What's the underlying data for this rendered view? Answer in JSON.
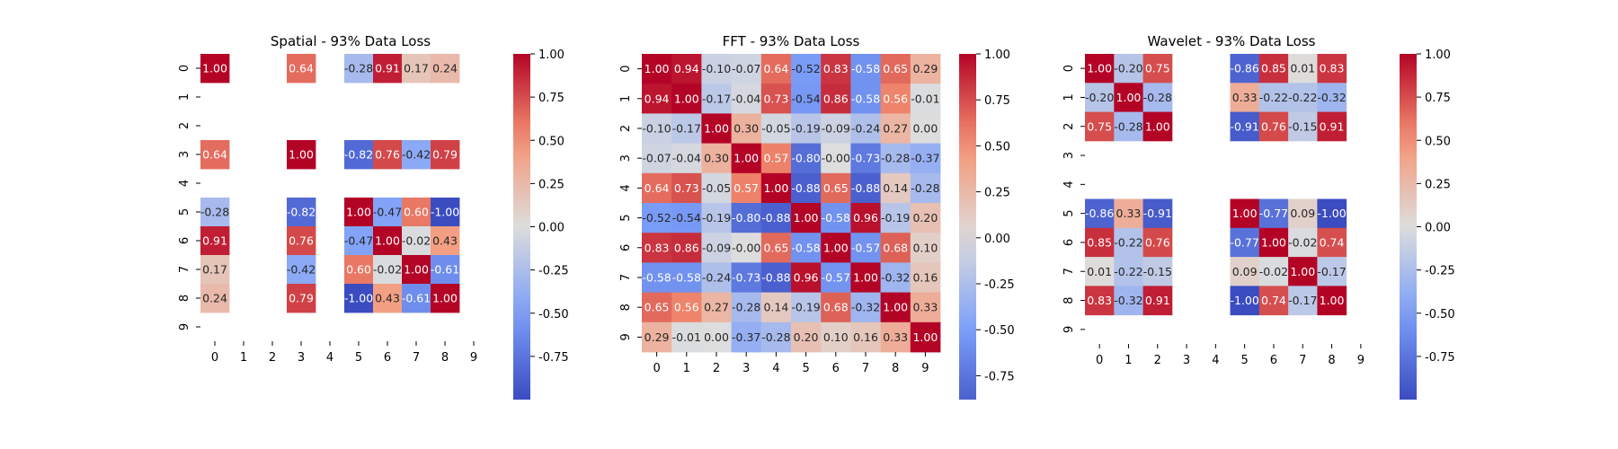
{
  "chart_data": [
    {
      "type": "heatmap",
      "title": "Spatial - 93% Data Loss",
      "xticks": [
        "0",
        "1",
        "2",
        "3",
        "4",
        "5",
        "6",
        "7",
        "8",
        "9"
      ],
      "yticks": [
        "0",
        "1",
        "2",
        "3",
        "4",
        "5",
        "6",
        "7",
        "8",
        "9"
      ],
      "colormap": "coolwarm",
      "vmin": -1.0,
      "vmax": 1.0,
      "colorbar_ticks": [
        1.0,
        0.75,
        0.5,
        0.25,
        0.0,
        -0.25,
        -0.5,
        -0.75
      ],
      "values": [
        [
          1.0,
          null,
          null,
          0.64,
          null,
          -0.28,
          0.91,
          0.17,
          0.24,
          null
        ],
        [
          null,
          null,
          null,
          null,
          null,
          null,
          null,
          null,
          null,
          null
        ],
        [
          null,
          null,
          null,
          null,
          null,
          null,
          null,
          null,
          null,
          null
        ],
        [
          0.64,
          null,
          null,
          1.0,
          null,
          -0.82,
          0.76,
          -0.42,
          0.79,
          null
        ],
        [
          null,
          null,
          null,
          null,
          null,
          null,
          null,
          null,
          null,
          null
        ],
        [
          -0.28,
          null,
          null,
          -0.82,
          null,
          1.0,
          -0.47,
          0.6,
          -1.0,
          null
        ],
        [
          0.91,
          null,
          null,
          0.76,
          null,
          -0.47,
          1.0,
          -0.02,
          0.43,
          null
        ],
        [
          0.17,
          null,
          null,
          -0.42,
          null,
          0.6,
          -0.02,
          1.0,
          -0.61,
          null
        ],
        [
          0.24,
          null,
          null,
          0.79,
          null,
          -1.0,
          0.43,
          -0.61,
          1.0,
          null
        ],
        [
          null,
          null,
          null,
          null,
          null,
          null,
          null,
          null,
          null,
          null
        ]
      ]
    },
    {
      "type": "heatmap",
      "title": "FFT - 93% Data Loss",
      "xticks": [
        "0",
        "1",
        "2",
        "3",
        "4",
        "5",
        "6",
        "7",
        "8",
        "9"
      ],
      "yticks": [
        "0",
        "1",
        "2",
        "3",
        "4",
        "5",
        "6",
        "7",
        "8",
        "9"
      ],
      "colormap": "coolwarm",
      "vmin": -0.88,
      "vmax": 1.0,
      "colorbar_ticks": [
        1.0,
        0.75,
        0.5,
        0.25,
        0.0,
        -0.25,
        -0.5,
        -0.75
      ],
      "values": [
        [
          1.0,
          0.94,
          -0.1,
          -0.07,
          0.64,
          -0.52,
          0.83,
          -0.58,
          0.65,
          0.29
        ],
        [
          0.94,
          1.0,
          -0.17,
          -0.04,
          0.73,
          -0.54,
          0.86,
          -0.58,
          0.56,
          -0.01
        ],
        [
          -0.1,
          -0.17,
          1.0,
          0.3,
          -0.05,
          -0.19,
          -0.09,
          -0.24,
          0.27,
          0.0
        ],
        [
          -0.07,
          -0.04,
          0.3,
          1.0,
          0.57,
          -0.8,
          -0.0,
          -0.73,
          -0.28,
          -0.37
        ],
        [
          0.64,
          0.73,
          -0.05,
          0.57,
          1.0,
          -0.88,
          0.65,
          -0.88,
          0.14,
          -0.28
        ],
        [
          -0.52,
          -0.54,
          -0.19,
          -0.8,
          -0.88,
          1.0,
          -0.58,
          0.96,
          -0.19,
          0.2
        ],
        [
          0.83,
          0.86,
          -0.09,
          -0.0,
          0.65,
          -0.58,
          1.0,
          -0.57,
          0.68,
          0.1
        ],
        [
          -0.58,
          -0.58,
          -0.24,
          -0.73,
          -0.88,
          0.96,
          -0.57,
          1.0,
          -0.32,
          0.16
        ],
        [
          0.65,
          0.56,
          0.27,
          -0.28,
          0.14,
          -0.19,
          0.68,
          -0.32,
          1.0,
          0.33
        ],
        [
          0.29,
          -0.01,
          0.0,
          -0.37,
          -0.28,
          0.2,
          0.1,
          0.16,
          0.33,
          1.0
        ]
      ]
    },
    {
      "type": "heatmap",
      "title": "Wavelet - 93% Data Loss",
      "xticks": [
        "0",
        "1",
        "2",
        "3",
        "4",
        "5",
        "6",
        "7",
        "8",
        "9"
      ],
      "yticks": [
        "0",
        "1",
        "2",
        "3",
        "4",
        "5",
        "6",
        "7",
        "8",
        "9"
      ],
      "colormap": "coolwarm",
      "vmin": -1.0,
      "vmax": 1.0,
      "colorbar_ticks": [
        1.0,
        0.75,
        0.5,
        0.25,
        0.0,
        -0.25,
        -0.5,
        -0.75
      ],
      "values": [
        [
          1.0,
          -0.2,
          0.75,
          null,
          null,
          -0.86,
          0.85,
          0.01,
          0.83,
          null
        ],
        [
          -0.2,
          1.0,
          -0.28,
          null,
          null,
          0.33,
          -0.22,
          -0.22,
          -0.32,
          null
        ],
        [
          0.75,
          -0.28,
          1.0,
          null,
          null,
          -0.91,
          0.76,
          -0.15,
          0.91,
          null
        ],
        [
          null,
          null,
          null,
          null,
          null,
          null,
          null,
          null,
          null,
          null
        ],
        [
          null,
          null,
          null,
          null,
          null,
          null,
          null,
          null,
          null,
          null
        ],
        [
          -0.86,
          0.33,
          -0.91,
          null,
          null,
          1.0,
          -0.77,
          0.09,
          -1.0,
          null
        ],
        [
          0.85,
          -0.22,
          0.76,
          null,
          null,
          -0.77,
          1.0,
          -0.02,
          0.74,
          null
        ],
        [
          0.01,
          -0.22,
          -0.15,
          null,
          null,
          0.09,
          -0.02,
          1.0,
          -0.17,
          null
        ],
        [
          0.83,
          -0.32,
          0.91,
          null,
          null,
          -1.0,
          0.74,
          -0.17,
          1.0,
          null
        ],
        [
          null,
          null,
          null,
          null,
          null,
          null,
          null,
          null,
          null,
          null
        ]
      ]
    }
  ]
}
